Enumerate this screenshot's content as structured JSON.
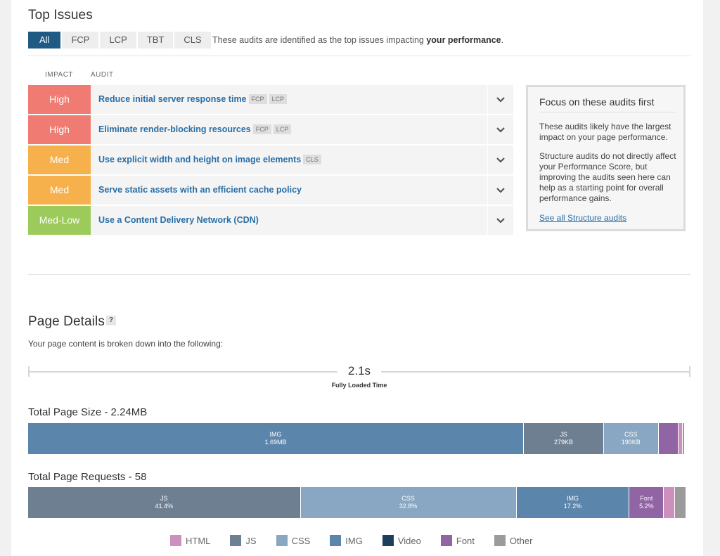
{
  "top_issues": {
    "title": "Top Issues",
    "tabs": [
      {
        "label": "All",
        "active": true
      },
      {
        "label": "FCP",
        "active": false
      },
      {
        "label": "LCP",
        "active": false
      },
      {
        "label": "TBT",
        "active": false
      },
      {
        "label": "CLS",
        "active": false
      }
    ],
    "description_prefix": "These audits are identified as the top issues impacting ",
    "description_bold": "your performance",
    "description_suffix": ".",
    "col_impact": "IMPACT",
    "col_audit": "AUDIT",
    "audits": [
      {
        "impact": "High",
        "impact_color": "#ef7b72",
        "title": "Reduce initial server response time",
        "badges": [
          "FCP",
          "LCP"
        ]
      },
      {
        "impact": "High",
        "impact_color": "#ef7b72",
        "title": "Eliminate render-blocking resources",
        "badges": [
          "FCP",
          "LCP"
        ]
      },
      {
        "impact": "Med",
        "impact_color": "#f6b04c",
        "title": "Use explicit width and height on image elements",
        "badges": [
          "CLS"
        ]
      },
      {
        "impact": "Med",
        "impact_color": "#f6b04c",
        "title": "Serve static assets with an efficient cache policy",
        "badges": []
      },
      {
        "impact": "Med-Low",
        "impact_color": "#9ccb5b",
        "title": "Use a Content Delivery Network (CDN)",
        "badges": []
      }
    ],
    "focus": {
      "title": "Focus on these audits first",
      "p1": "These audits likely have the largest impact on your page performance.",
      "p2": "Structure audits do not directly affect your Performance Score, but improving the audits seen here can help as a starting point for overall performance gains.",
      "link": "See all Structure audits"
    }
  },
  "page_details": {
    "title": "Page Details",
    "help": "?",
    "subtitle": "Your page content is broken down into the following:",
    "fully_loaded_value": "2.1s",
    "fully_loaded_label": "Fully Loaded Time",
    "size": {
      "title": "Total Page Size - 2.24MB",
      "segments": [
        {
          "type": "IMG",
          "value": "1.69MB",
          "fraction": 0.7525,
          "color": "#5b85aa"
        },
        {
          "type": "JS",
          "value": "279KB",
          "fraction": 0.1216,
          "color": "#6e7f91"
        },
        {
          "type": "CSS",
          "value": "190KB",
          "fraction": 0.0827,
          "color": "#89a7c2"
        },
        {
          "type": "",
          "value": "",
          "fraction": 0.0309,
          "color": "#9164a3"
        },
        {
          "type": "",
          "value": "",
          "fraction": 0.0064,
          "color": "#cd8fbc"
        },
        {
          "type": "",
          "value": "",
          "fraction": 0.0032,
          "color": "#9b9b9b"
        }
      ]
    },
    "requests": {
      "title": "Total Page Requests - 58",
      "segments": [
        {
          "type": "JS",
          "value": "41.4%",
          "fraction": 0.414,
          "color": "#6e7f91"
        },
        {
          "type": "CSS",
          "value": "32.8%",
          "fraction": 0.328,
          "color": "#89a7c2"
        },
        {
          "type": "IMG",
          "value": "17.2%",
          "fraction": 0.172,
          "color": "#5b85aa"
        },
        {
          "type": "Font",
          "value": "5.2%",
          "fraction": 0.052,
          "color": "#9164a3"
        },
        {
          "type": "",
          "value": "",
          "fraction": 0.017,
          "color": "#cd8fbc"
        },
        {
          "type": "",
          "value": "",
          "fraction": 0.017,
          "color": "#9b9b9b"
        }
      ]
    },
    "legend": [
      {
        "label": "HTML",
        "color": "#cd8fbc"
      },
      {
        "label": "JS",
        "color": "#6e7f91"
      },
      {
        "label": "CSS",
        "color": "#89a7c2"
      },
      {
        "label": "IMG",
        "color": "#5b85aa"
      },
      {
        "label": "Video",
        "color": "#1d3f5e"
      },
      {
        "label": "Font",
        "color": "#9164a3"
      },
      {
        "label": "Other",
        "color": "#9b9b9b"
      }
    ]
  }
}
